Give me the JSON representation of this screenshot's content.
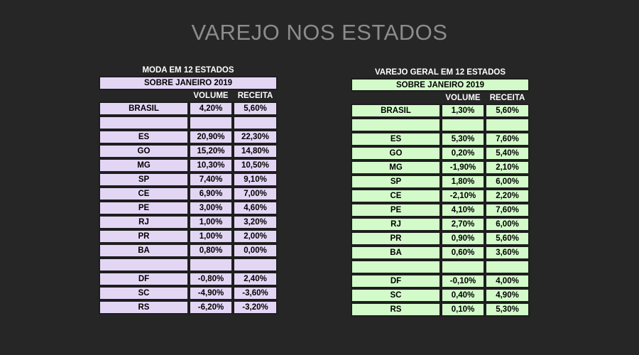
{
  "page_title": "VAREJO NOS ESTADOS",
  "tables": [
    {
      "caption": "MODA EM 12 ESTADOS",
      "subtitle": "SOBRE JANEIRO 2019",
      "columns": [
        "VOLUME",
        "RECEITA"
      ],
      "rows": [
        {
          "state": "BRASIL",
          "volume": "4,20%",
          "receita": "5,60%"
        },
        {
          "state": "",
          "volume": "",
          "receita": ""
        },
        {
          "state": "ES",
          "volume": "20,90%",
          "receita": "22,30%"
        },
        {
          "state": "GO",
          "volume": "15,20%",
          "receita": "14,80%"
        },
        {
          "state": "MG",
          "volume": "10,30%",
          "receita": "10,50%"
        },
        {
          "state": "SP",
          "volume": "7,40%",
          "receita": "9,10%"
        },
        {
          "state": "CE",
          "volume": "6,90%",
          "receita": "7,00%"
        },
        {
          "state": "PE",
          "volume": "3,00%",
          "receita": "4,60%"
        },
        {
          "state": "RJ",
          "volume": "1,00%",
          "receita": "3,20%"
        },
        {
          "state": "PR",
          "volume": "1,00%",
          "receita": "2,00%"
        },
        {
          "state": "BA",
          "volume": "0,80%",
          "receita": "0,00%"
        },
        {
          "state": "",
          "volume": "",
          "receita": ""
        },
        {
          "state": "DF",
          "volume": "-0,80%",
          "receita": "2,40%"
        },
        {
          "state": "SC",
          "volume": "-4,90%",
          "receita": "-3,60%"
        },
        {
          "state": "RS",
          "volume": "-6,20%",
          "receita": "-3,20%"
        }
      ]
    },
    {
      "caption": "VAREJO GERAL EM 12 ESTADOS",
      "subtitle": "SOBRE JANEIRO 2019",
      "columns": [
        "VOLUME",
        "RECEITA"
      ],
      "rows": [
        {
          "state": "BRASIL",
          "volume": "1,30%",
          "receita": "5,60%"
        },
        {
          "state": "",
          "volume": "",
          "receita": ""
        },
        {
          "state": "ES",
          "volume": "5,30%",
          "receita": "7,60%"
        },
        {
          "state": "GO",
          "volume": "0,20%",
          "receita": "5,40%"
        },
        {
          "state": "MG",
          "volume": "-1,90%",
          "receita": "2,10%"
        },
        {
          "state": "SP",
          "volume": "1,80%",
          "receita": "6,00%"
        },
        {
          "state": "CE",
          "volume": "-2,10%",
          "receita": "2,20%"
        },
        {
          "state": "PE",
          "volume": "4,10%",
          "receita": "7,60%"
        },
        {
          "state": "RJ",
          "volume": "2,70%",
          "receita": "6,00%"
        },
        {
          "state": "PR",
          "volume": "0,90%",
          "receita": "5,60%"
        },
        {
          "state": "BA",
          "volume": "0,60%",
          "receita": "3,60%"
        },
        {
          "state": "",
          "volume": "",
          "receita": ""
        },
        {
          "state": "DF",
          "volume": "-0,10%",
          "receita": "4,00%"
        },
        {
          "state": "SC",
          "volume": "0,40%",
          "receita": "4,90%"
        },
        {
          "state": "RS",
          "volume": "0,10%",
          "receita": "5,30%"
        }
      ]
    }
  ],
  "colors": {
    "background": "#262626",
    "title_text": "#8c8c8c",
    "moda_fill": "#e3d6f5",
    "varejo_fill": "#d3fbca"
  }
}
